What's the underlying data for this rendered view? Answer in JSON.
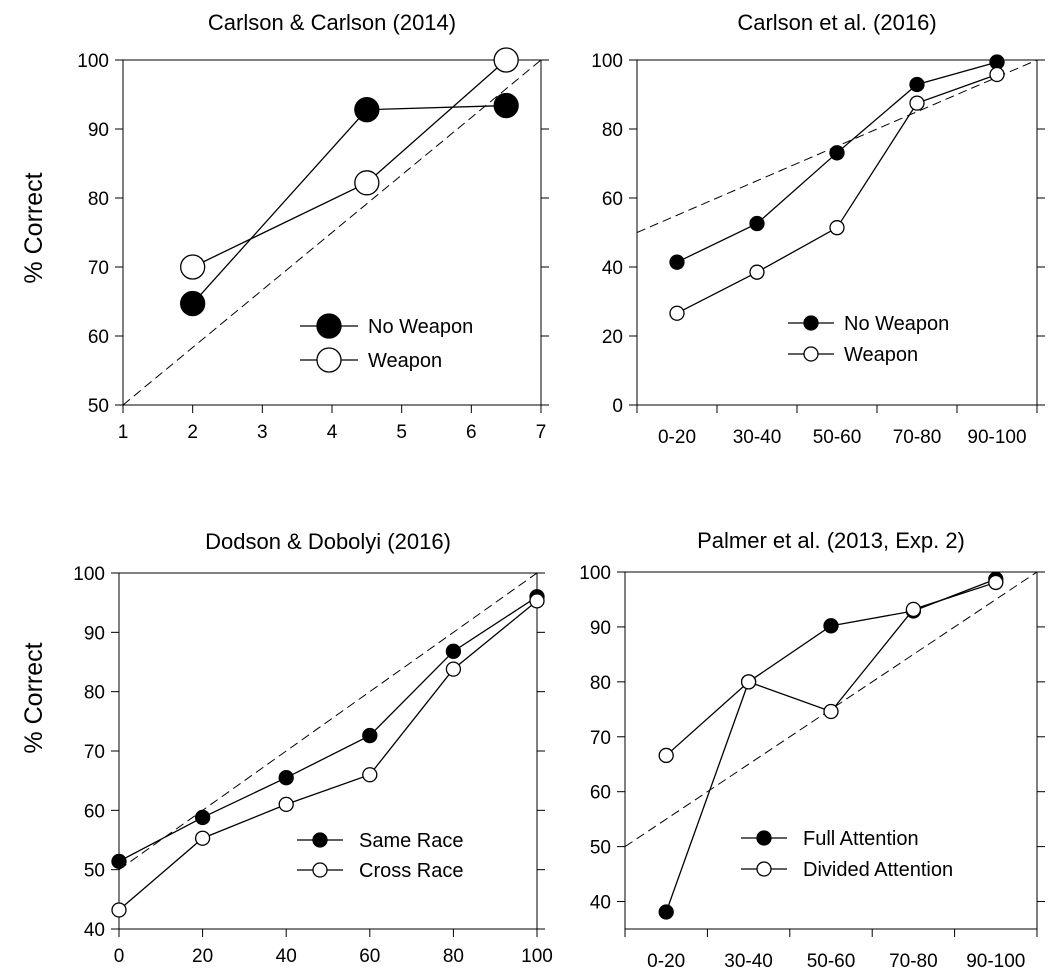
{
  "figure": {
    "ylabel_top": "% Correct",
    "ylabel_bottom": "% Correct"
  },
  "chart_data": [
    {
      "type": "line",
      "title": "Carlson & Carlson (2014)",
      "xlabel": "",
      "ylabel": "% Correct",
      "xlim": [
        1,
        7
      ],
      "ylim": [
        50,
        100
      ],
      "xticks": [
        "1",
        "2",
        "3",
        "4",
        "5",
        "6",
        "7"
      ],
      "yticks": [
        "50",
        "60",
        "70",
        "80",
        "90",
        "100"
      ],
      "reference_line": [
        [
          1,
          50
        ],
        [
          7,
          100
        ]
      ],
      "legend_position": "lower-right",
      "marker_size": "large",
      "series": [
        {
          "name": "No Weapon",
          "filled": true,
          "x": [
            2,
            4.5,
            6.5
          ],
          "y": [
            64.7,
            92.8,
            93.4
          ]
        },
        {
          "name": "Weapon",
          "filled": false,
          "x": [
            2,
            4.5,
            6.5
          ],
          "y": [
            70.0,
            82.2,
            100.0
          ]
        }
      ]
    },
    {
      "type": "line",
      "title": "Carlson et al. (2016)",
      "xlabel": "",
      "ylabel": "",
      "categories": [
        "0-20",
        "30-40",
        "50-60",
        "70-80",
        "90-100"
      ],
      "xlim": [
        0,
        5
      ],
      "ylim": [
        0,
        100
      ],
      "yticks": [
        "0",
        "20",
        "40",
        "60",
        "80",
        "100"
      ],
      "reference_line": [
        [
          0,
          50
        ],
        [
          5,
          100
        ]
      ],
      "legend_position": "bottom-right",
      "marker_size": "small",
      "series": [
        {
          "name": "No Weapon",
          "filled": true,
          "x": [
            0.5,
            1.5,
            2.5,
            3.5,
            4.5
          ],
          "y": [
            41.4,
            52.6,
            73.1,
            92.9,
            99.4
          ]
        },
        {
          "name": "Weapon",
          "filled": false,
          "x": [
            0.5,
            1.5,
            2.5,
            3.5,
            4.5
          ],
          "y": [
            26.6,
            38.5,
            51.4,
            87.5,
            95.8
          ]
        }
      ]
    },
    {
      "type": "line",
      "title": "Dodson & Dobolyi (2016)",
      "xlabel": "",
      "ylabel": "% Correct",
      "xlim": [
        0,
        100
      ],
      "ylim": [
        40,
        100
      ],
      "xticks": [
        "0",
        "20",
        "40",
        "60",
        "80",
        "100"
      ],
      "yticks": [
        "40",
        "50",
        "60",
        "70",
        "80",
        "90",
        "100"
      ],
      "reference_line": [
        [
          0,
          50
        ],
        [
          100,
          100
        ]
      ],
      "legend_position": "bottom-right",
      "marker_size": "small",
      "series": [
        {
          "name": "Same Race",
          "filled": true,
          "x": [
            0,
            20,
            40,
            60,
            80,
            100
          ],
          "y": [
            51.4,
            58.8,
            65.5,
            72.6,
            86.8,
            96.0
          ]
        },
        {
          "name": "Cross Race",
          "filled": false,
          "x": [
            0,
            20,
            40,
            60,
            80,
            100
          ],
          "y": [
            43.2,
            55.3,
            61.0,
            66.0,
            83.8,
            95.3
          ]
        }
      ]
    },
    {
      "type": "line",
      "title": "Palmer et al. (2013, Exp. 2)",
      "xlabel": "",
      "ylabel": "",
      "categories": [
        "0-20",
        "30-40",
        "50-60",
        "70-80",
        "90-100"
      ],
      "xlim": [
        0,
        5
      ],
      "ylim": [
        35,
        100
      ],
      "yticks": [
        "40",
        "50",
        "60",
        "70",
        "80",
        "90",
        "100"
      ],
      "reference_line": [
        [
          0,
          50
        ],
        [
          5,
          100
        ]
      ],
      "legend_position": "bottom-right",
      "marker_size": "small",
      "series": [
        {
          "name": "Full Attention",
          "filled": true,
          "x": [
            0.5,
            1.5,
            2.5,
            3.5,
            4.5
          ],
          "y": [
            38.1,
            80.0,
            90.2,
            92.9,
            98.7
          ]
        },
        {
          "name": "Divided Attention",
          "filled": false,
          "x": [
            0.5,
            1.5,
            2.5,
            3.5,
            4.5
          ],
          "y": [
            66.6,
            80.0,
            74.6,
            93.2,
            98.1
          ]
        }
      ]
    }
  ]
}
